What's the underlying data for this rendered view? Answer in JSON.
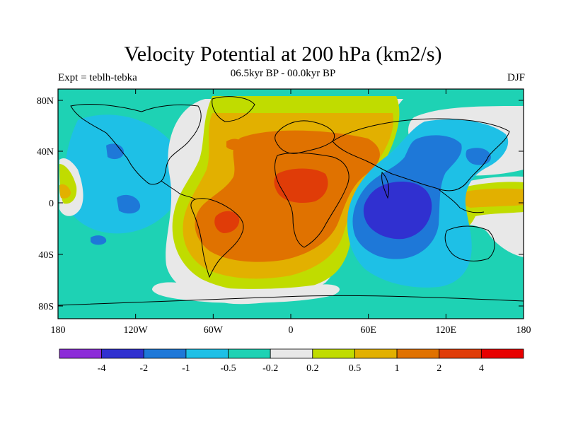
{
  "header": {
    "title": "Velocity Potential at 200 hPa (km2/s)",
    "left_label": "Expt = teblh-tebka",
    "center_label": "06.5kyr BP - 00.0kyr BP",
    "right_label": "DJF"
  },
  "map": {
    "lat_ticks": [
      "80N",
      "40N",
      "0",
      "40S",
      "80S"
    ],
    "lon_ticks": [
      "180",
      "120W",
      "60W",
      "0",
      "60E",
      "120E",
      "180"
    ],
    "projection": "cylindrical equidistant",
    "coastlines": true
  },
  "colorbar": {
    "labels": [
      "-4",
      "-2",
      "-1",
      "-0.5",
      "-0.2",
      "0.2",
      "0.5",
      "1",
      "2",
      "4"
    ],
    "colors": [
      "#8c2cd8",
      "#3030d0",
      "#1e78d8",
      "#1ec0e6",
      "#1ed2b4",
      "#e8e8e8",
      "#c0dc00",
      "#e2b000",
      "#e07200",
      "#e03c08",
      "#e80000"
    ]
  }
}
